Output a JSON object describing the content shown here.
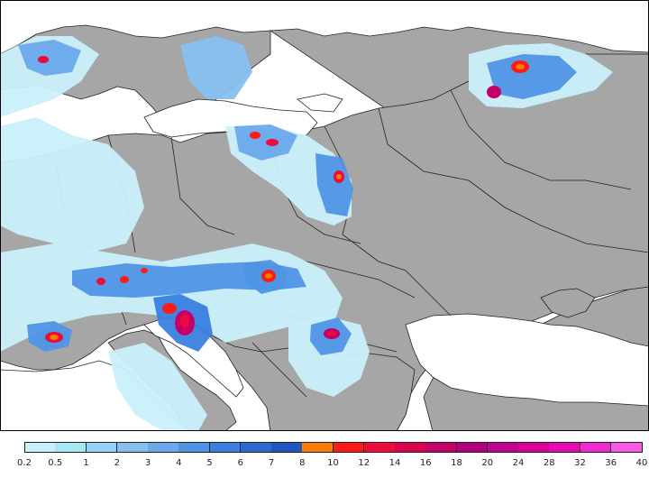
{
  "map": {
    "land_color": "#a6a6a6",
    "water_color": "#ffffff",
    "border_color": "#222222",
    "frame_color": "#000000"
  },
  "legend": {
    "ticks": [
      "0.2",
      "0.5",
      "1",
      "2",
      "3",
      "4",
      "5",
      "6",
      "7",
      "8",
      "10",
      "12",
      "14",
      "16",
      "18",
      "20",
      "24",
      "28",
      "32",
      "36",
      "40"
    ],
    "colors": [
      "#c9f0fa",
      "#a4e8f6",
      "#97d0f5",
      "#87c0f0",
      "#6aa9ec",
      "#4f95e6",
      "#3a7fe0",
      "#2a6bd5",
      "#1f58c2",
      "#ff7b00",
      "#ff1a1a",
      "#ee0a3c",
      "#d8004d",
      "#c40068",
      "#b00080",
      "#c0008e",
      "#d80098",
      "#e40ab4",
      "#ee2ad0",
      "#f65ae4"
    ]
  }
}
